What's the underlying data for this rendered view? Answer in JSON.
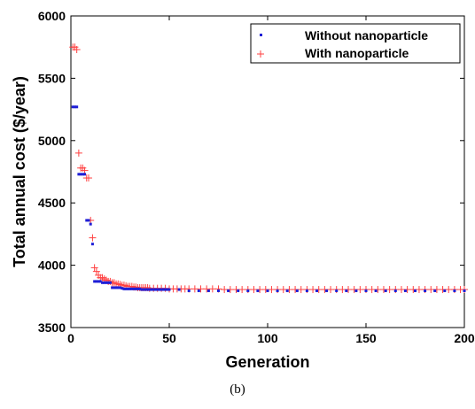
{
  "chart_data": {
    "type": "scatter",
    "xlabel": "Generation",
    "ylabel": "Total annual cost ($/year)",
    "xlim": [
      0,
      200
    ],
    "ylim": [
      3500,
      6000
    ],
    "xticks": [
      0,
      50,
      100,
      150,
      200
    ],
    "yticks": [
      3500,
      4000,
      4500,
      5000,
      5500,
      6000
    ],
    "grid": false,
    "legend_position": "top-right",
    "caption": "(b)",
    "series": [
      {
        "name": "Without nanoparticle",
        "marker": "dot",
        "color": "#1f1fd6",
        "x": [
          1,
          2,
          3,
          4,
          5,
          6,
          7,
          8,
          9,
          10,
          11,
          12,
          13,
          14,
          15,
          16,
          17,
          18,
          19,
          20,
          21,
          22,
          23,
          24,
          25,
          26,
          27,
          28,
          29,
          30,
          31,
          32,
          33,
          34,
          35,
          36,
          37,
          38,
          39,
          40,
          41,
          42,
          43,
          44,
          45,
          46,
          47,
          48,
          49,
          50,
          55,
          60,
          65,
          70,
          75,
          80,
          85,
          90,
          95,
          100,
          105,
          110,
          115,
          120,
          125,
          130,
          135,
          140,
          145,
          150,
          155,
          160,
          165,
          170,
          175,
          180,
          185,
          190,
          195,
          200
        ],
        "y": [
          5270,
          5270,
          5270,
          4730,
          4730,
          4730,
          4730,
          4360,
          4360,
          4330,
          4170,
          3870,
          3870,
          3870,
          3870,
          3860,
          3860,
          3860,
          3860,
          3860,
          3820,
          3820,
          3820,
          3820,
          3820,
          3815,
          3810,
          3810,
          3810,
          3810,
          3810,
          3810,
          3810,
          3810,
          3810,
          3805,
          3805,
          3805,
          3805,
          3805,
          3805,
          3805,
          3805,
          3805,
          3805,
          3805,
          3805,
          3805,
          3805,
          3805,
          3805,
          3795,
          3795,
          3795,
          3795,
          3795,
          3795,
          3795,
          3795,
          3795,
          3795,
          3795,
          3795,
          3795,
          3795,
          3795,
          3795,
          3795,
          3795,
          3795,
          3795,
          3795,
          3795,
          3795,
          3795,
          3795,
          3795,
          3795,
          3795,
          3795
        ]
      },
      {
        "name": "With nanoparticle",
        "marker": "plus",
        "color": "#ff4040",
        "x": [
          1,
          2,
          3,
          4,
          5,
          6,
          7,
          8,
          9,
          10,
          11,
          12,
          13,
          14,
          15,
          16,
          17,
          18,
          19,
          20,
          21,
          22,
          23,
          24,
          25,
          26,
          27,
          28,
          29,
          30,
          31,
          32,
          33,
          34,
          35,
          36,
          37,
          38,
          39,
          40,
          42,
          44,
          46,
          48,
          50,
          52,
          54,
          56,
          58,
          60,
          63,
          66,
          69,
          72,
          75,
          78,
          81,
          84,
          87,
          90,
          93,
          96,
          99,
          102,
          105,
          108,
          111,
          114,
          117,
          120,
          123,
          126,
          129,
          132,
          135,
          138,
          141,
          144,
          147,
          150,
          153,
          156,
          159,
          162,
          165,
          168,
          171,
          174,
          177,
          180,
          183,
          186,
          189,
          192,
          195,
          198,
          200
        ],
        "y": [
          5750,
          5750,
          5730,
          4900,
          4780,
          4780,
          4760,
          4700,
          4700,
          4360,
          4220,
          3980,
          3950,
          3920,
          3900,
          3900,
          3890,
          3880,
          3870,
          3870,
          3860,
          3860,
          3850,
          3850,
          3845,
          3840,
          3840,
          3835,
          3830,
          3830,
          3830,
          3825,
          3825,
          3820,
          3820,
          3820,
          3820,
          3820,
          3820,
          3815,
          3815,
          3815,
          3815,
          3815,
          3810,
          3810,
          3810,
          3810,
          3810,
          3810,
          3810,
          3810,
          3810,
          3810,
          3810,
          3805,
          3805,
          3805,
          3805,
          3805,
          3805,
          3805,
          3805,
          3805,
          3805,
          3805,
          3805,
          3805,
          3805,
          3805,
          3805,
          3805,
          3805,
          3805,
          3805,
          3805,
          3805,
          3805,
          3805,
          3805,
          3805,
          3805,
          3805,
          3805,
          3805,
          3805,
          3805,
          3805,
          3805,
          3805,
          3805,
          3805,
          3805,
          3805,
          3805,
          3805,
          3805
        ]
      }
    ]
  }
}
